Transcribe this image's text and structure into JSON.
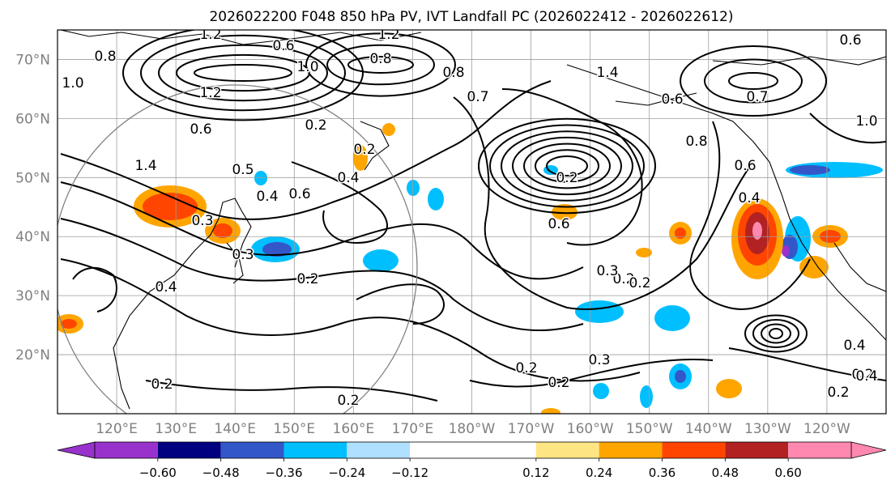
{
  "title": "2026022200 F048 850 hPa PV, IVT Landfall PC (2026022412 - 2026022612)",
  "map": {
    "lon_range": [
      110,
      250
    ],
    "lat_range": [
      10,
      75
    ],
    "lat_labels": [
      "20°N",
      "30°N",
      "40°N",
      "50°N",
      "60°N",
      "70°N"
    ],
    "lon_labels": [
      "120°E",
      "130°E",
      "140°E",
      "150°E",
      "160°E",
      "170°E",
      "180°W",
      "170°W",
      "160°W",
      "150°W",
      "140°W",
      "130°W",
      "120°W"
    ],
    "colors": {
      "land": "#000000",
      "contour": "#000000",
      "grid": "#9e9e9e",
      "tick_label": "#808080",
      "circle": "#808080"
    }
  },
  "contour_labels": [
    "1.4",
    "1.2",
    "1.0",
    "0.8",
    "0.6",
    "0.4",
    "0.2",
    "0.6",
    "0.5",
    "0.4",
    "0.3",
    "0.2",
    "0.3",
    "0.2",
    "0.6",
    "0.4",
    "0.2",
    "0.2",
    "0.6",
    "0.2",
    "0.8",
    "0.7",
    "1.2",
    "1.0",
    "0.8",
    "0.6",
    "0.7",
    "0.6",
    "0.2",
    "1.4",
    "1.2",
    "1.0",
    "0.8",
    "0.6",
    "0.4",
    "0.2",
    "0.3",
    "0.4",
    "0.2",
    "0.2",
    "0.2",
    "0.3",
    "0.4",
    "0.2"
  ],
  "shading": {
    "positive": [
      "#fde584",
      "#ffa500",
      "#ff4500",
      "#b22222",
      "#ff88b0"
    ],
    "negative": [
      "#b0e0ff",
      "#00bfff",
      "#3357c8",
      "#000080",
      "#9932cc"
    ]
  },
  "colorbar": {
    "boundaries": [
      -0.72,
      -0.6,
      -0.48,
      -0.36,
      -0.24,
      -0.12,
      0.12,
      0.24,
      0.36,
      0.48,
      0.6,
      0.72
    ],
    "colors": [
      "#9932cc",
      "#000080",
      "#3357c8",
      "#00bfff",
      "#b0e0ff",
      "#ffffff",
      "#fde584",
      "#ffa500",
      "#ff4500",
      "#b22222",
      "#ff88b0"
    ],
    "extend": "both",
    "tick_labels": [
      "−0.60",
      "−0.48",
      "−0.36",
      "−0.24",
      "−0.12",
      "0.12",
      "0.24",
      "0.36",
      "0.48",
      "0.60"
    ]
  }
}
